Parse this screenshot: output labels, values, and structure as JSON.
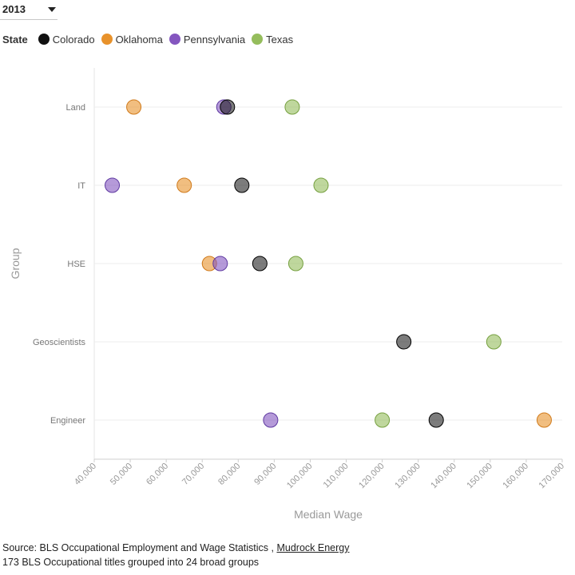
{
  "controls": {
    "year_value": "2013"
  },
  "legend": {
    "title": "State"
  },
  "colors": {
    "Colorado": "#111111",
    "Oklahoma": "#e8922b",
    "Pennsylvania": "#8456bf",
    "Texas": "#95bd5c"
  },
  "chart_data": {
    "type": "scatter",
    "xlabel": "Median Wage",
    "ylabel": "Group",
    "xlim": [
      40000,
      170000
    ],
    "x_ticks": [
      "40,000",
      "50,000",
      "60,000",
      "70,000",
      "80,000",
      "90,000",
      "100,000",
      "110,000",
      "120,000",
      "130,000",
      "140,000",
      "150,000",
      "160,000",
      "170,000"
    ],
    "categories": [
      "Land",
      "IT",
      "HSE",
      "Geoscientists",
      "Engineer"
    ],
    "grid": true,
    "legend_position": "top-left",
    "series": [
      {
        "name": "Colorado",
        "values": [
          77000,
          81000,
          86000,
          126000,
          135000
        ]
      },
      {
        "name": "Oklahoma",
        "values": [
          51000,
          65000,
          72000,
          null,
          165000
        ]
      },
      {
        "name": "Pennsylvania",
        "values": [
          76000,
          45000,
          75000,
          null,
          89000
        ]
      },
      {
        "name": "Texas",
        "values": [
          95000,
          103000,
          96000,
          151000,
          120000
        ]
      }
    ]
  },
  "footer": {
    "source_prefix": "Source: BLS Occupational Employment and Wage Statistics ,",
    "source_link": "Mudrock Energy",
    "note": "173 BLS Occupational titles grouped into 24 broad groups"
  }
}
